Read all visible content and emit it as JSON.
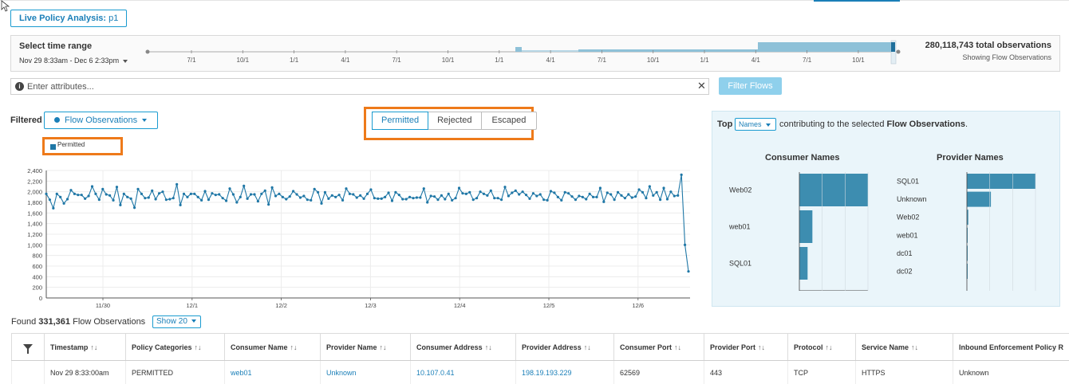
{
  "header": {
    "title_label": "Live Policy Analysis:",
    "title_value": "p1"
  },
  "time_range": {
    "label": "Select time range",
    "range": "Nov 29 8:33am - Dec 6 2:33pm",
    "total": "280,118,743 total observations",
    "showing": "Showing Flow Observations",
    "ticks": [
      "7/1",
      "10/1",
      "1/1",
      "4/1",
      "7/1",
      "10/1",
      "1/1",
      "4/1",
      "7/1",
      "10/1",
      "1/1",
      "4/1",
      "7/1",
      "10/1"
    ]
  },
  "attributes": {
    "placeholder": "Enter attributes...",
    "filter_button": "Filter Flows"
  },
  "filter": {
    "label": "Filtered",
    "dropdown": "Flow Observations",
    "tabs": [
      "Permitted",
      "Rejected",
      "Escaped"
    ],
    "active_tab": "Permitted"
  },
  "chart_data": {
    "type": "line",
    "series": [
      {
        "name": "Permitted",
        "color": "#1f77a6",
        "values": [
          1960,
          1850,
          1690,
          1960,
          1900,
          1780,
          1860,
          2030,
          1960,
          1940,
          1940,
          1870,
          1920,
          2100,
          1960,
          1850,
          2050,
          1950,
          1930,
          1840,
          2090,
          1750,
          1960,
          1900,
          1870,
          1700,
          2050,
          1960,
          1880,
          1890,
          2020,
          1860,
          1970,
          2000,
          1850,
          1860,
          1880,
          2140,
          1750,
          1960,
          1900,
          1960,
          1960,
          1900,
          1840,
          2010,
          1850,
          1970,
          1940,
          1950,
          1880,
          1830,
          2060,
          1950,
          1800,
          1900,
          2110,
          1870,
          1950,
          1950,
          1820,
          1960,
          2020,
          1760,
          2080,
          1920,
          1960,
          1900,
          1860,
          1910,
          2010,
          1950,
          1890,
          1920,
          1850,
          1840,
          2050,
          1990,
          1780,
          1990,
          1870,
          1930,
          1900,
          1940,
          1840,
          2060,
          1960,
          1950,
          1890,
          1930,
          1870,
          1960,
          2040,
          1880,
          1870,
          1870,
          1900,
          1980,
          1830,
          1990,
          1940,
          1860,
          1860,
          1900,
          1880,
          1890,
          1890,
          2060,
          1800,
          1920,
          1910,
          1850,
          1930,
          1860,
          1960,
          1840,
          1880,
          2070,
          1970,
          1960,
          1990,
          1850,
          1880,
          2000,
          1960,
          1930,
          2020,
          1880,
          1880,
          1850,
          2090,
          1920,
          1980,
          2020,
          1950,
          2000,
          1940,
          1870,
          1970,
          1920,
          1950,
          1850,
          1840,
          2010,
          1980,
          1900,
          1840,
          1990,
          1970,
          1910,
          1850,
          1920,
          1900,
          1860,
          1960,
          1900,
          1900,
          2070,
          1810,
          1980,
          1950,
          1850,
          1990,
          1930,
          1880,
          1950,
          1890,
          1910,
          2040,
          1990,
          1880,
          2100,
          1930,
          1990,
          1850,
          2070,
          1860,
          2000,
          1920,
          1930,
          2320,
          1000,
          500
        ]
      }
    ],
    "x_labels": [
      "11/30",
      "12/1",
      "12/2",
      "12/3",
      "12/4",
      "12/5",
      "12/6"
    ],
    "y_ticks": [
      "2,400",
      "2,200",
      "2,000",
      "1,800",
      "1,600",
      "1,400",
      "1,200",
      "1,000",
      "800",
      "600",
      "400",
      "200",
      "0"
    ],
    "ylim": [
      0,
      2400
    ],
    "legend": "Permitted",
    "grid": true
  },
  "top_panel": {
    "top_label": "Top",
    "dropdown": "Names",
    "text_before": "contributing to the selected",
    "text_bold": "Flow Observations",
    "text_after": ".",
    "consumer": {
      "title": "Consumer Names",
      "items": [
        {
          "label": "Web02",
          "value": 1.0
        },
        {
          "label": "web01",
          "value": 0.19
        },
        {
          "label": "SQL01",
          "value": 0.12
        }
      ]
    },
    "provider": {
      "title": "Provider Names",
      "items": [
        {
          "label": "SQL01",
          "value": 1.0
        },
        {
          "label": "Unknown",
          "value": 0.35
        },
        {
          "label": "Web02",
          "value": 0.02
        },
        {
          "label": "web01",
          "value": 0.01
        },
        {
          "label": "dc01",
          "value": 0.005
        },
        {
          "label": "dc02",
          "value": 0.002
        }
      ]
    }
  },
  "results": {
    "found_prefix": "Found",
    "count": "331,361",
    "found_suffix": "Flow Observations",
    "show": "Show 20"
  },
  "table": {
    "columns": [
      "Timestamp",
      "Policy Categories",
      "Consumer Name",
      "Provider Name",
      "Consumer Address",
      "Provider Address",
      "Consumer Port",
      "Provider Port",
      "Protocol",
      "Service Name",
      "Inbound Enforcement Policy R"
    ],
    "sort_glyph": "↑↓",
    "rows": [
      [
        "Nov 29 8:33:00am",
        "PERMITTED",
        "web01",
        "Unknown",
        "10.107.0.41",
        "198.19.193.229",
        "62569",
        "443",
        "TCP",
        "HTTPS",
        "Unknown"
      ]
    ]
  }
}
